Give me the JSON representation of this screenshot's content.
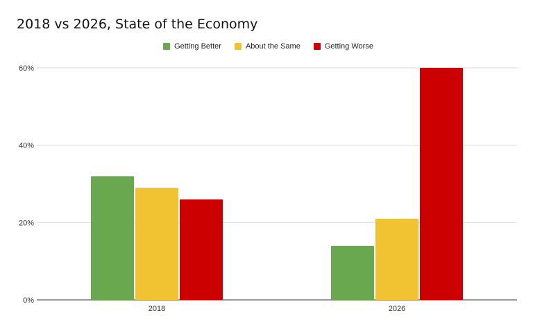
{
  "chart_data": {
    "type": "bar",
    "title": "2018 vs 2026, State of the Economy",
    "xlabel": "",
    "ylabel": "",
    "categories": [
      "2018",
      "2026"
    ],
    "series": [
      {
        "name": "Getting Better",
        "values": [
          32,
          14
        ],
        "color": "#6aa84f"
      },
      {
        "name": "About the Same",
        "values": [
          29,
          21
        ],
        "color": "#f1c232"
      },
      {
        "name": "Getting Worse",
        "values": [
          26,
          60
        ],
        "color": "#cc0000"
      }
    ],
    "ylim": [
      0,
      60
    ],
    "yticks": [
      0,
      20,
      40,
      60
    ],
    "ytick_labels": [
      "0%",
      "20%",
      "40%",
      "60%"
    ],
    "grid": true,
    "legend_position": "top-center"
  }
}
